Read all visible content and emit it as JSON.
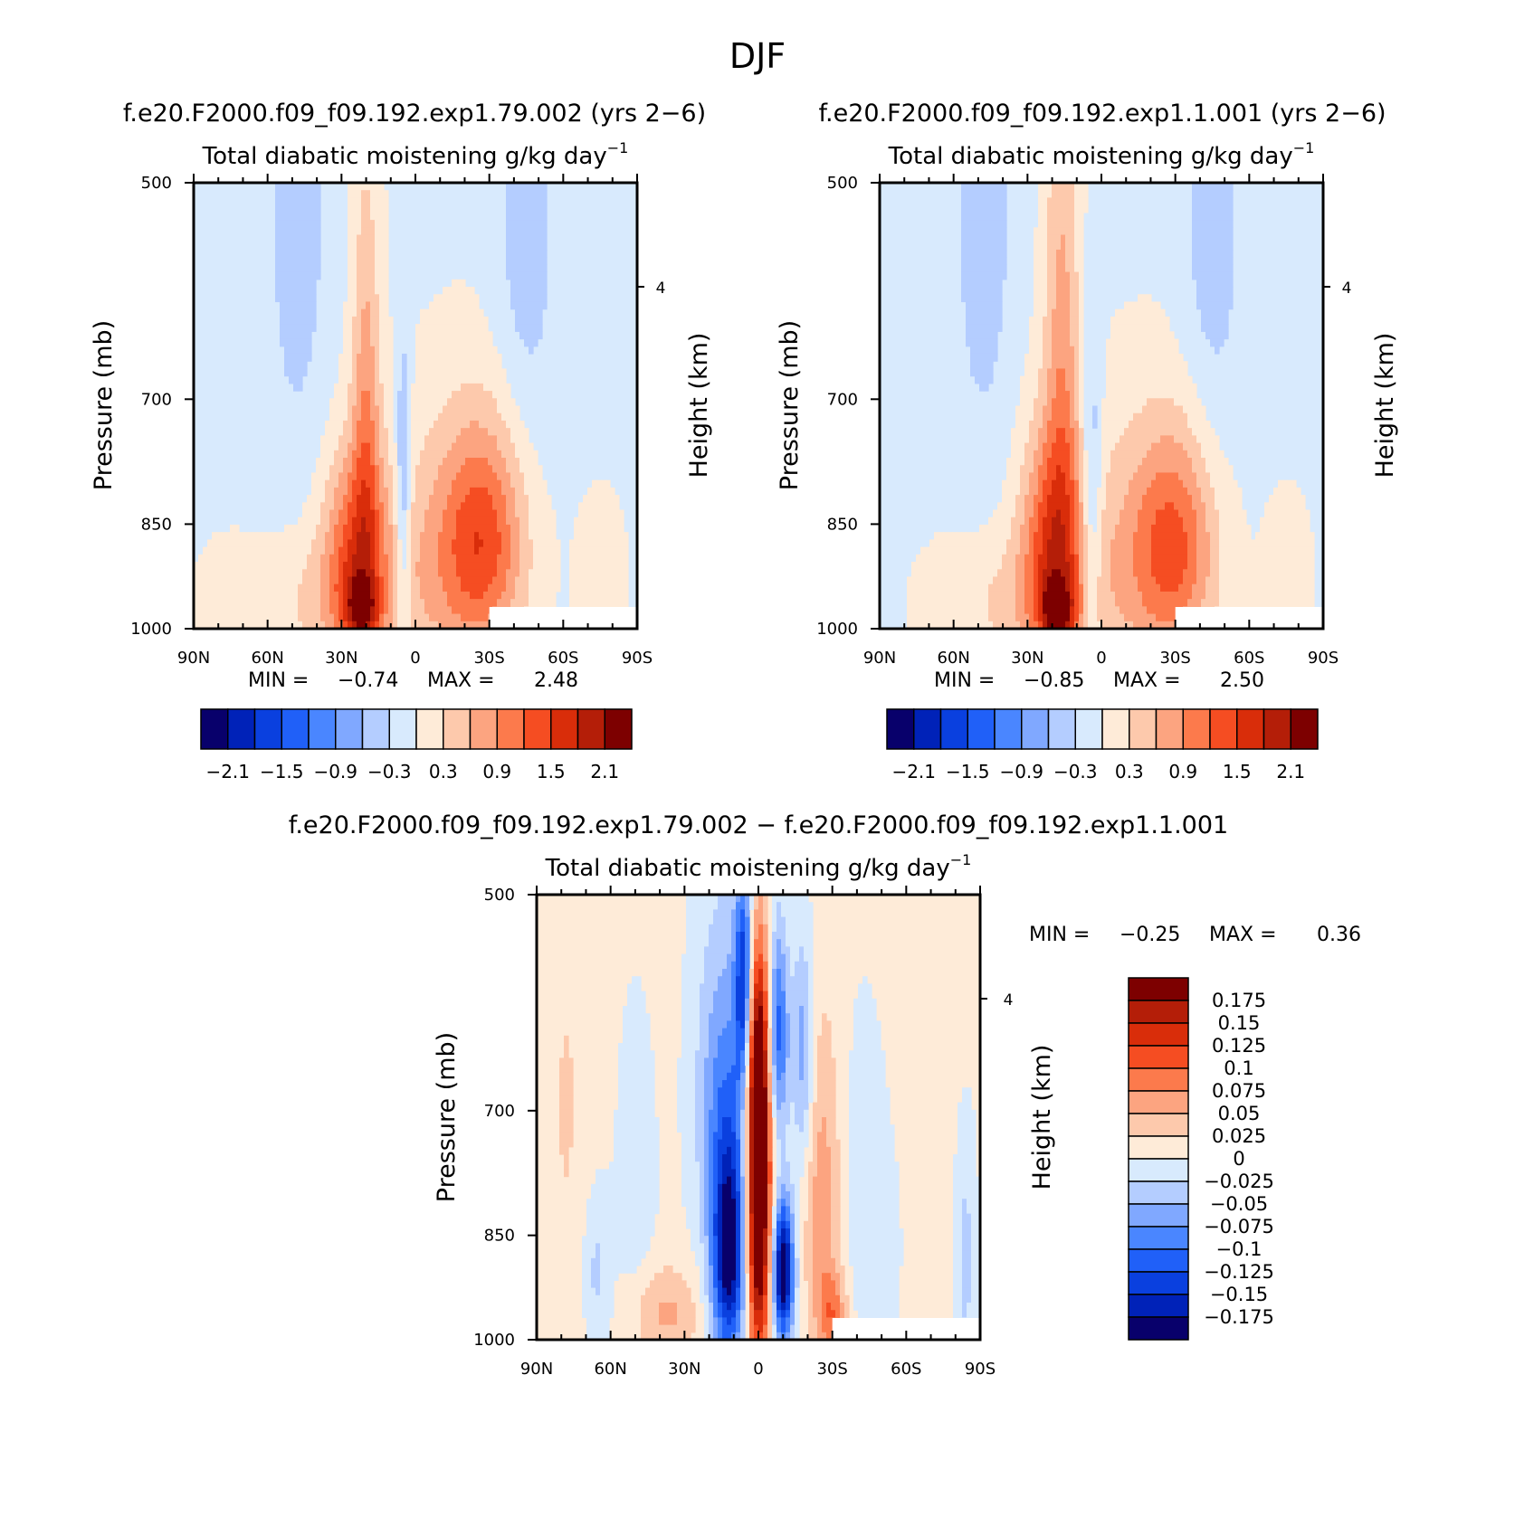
{
  "figure_title": "DJF",
  "colors": {
    "panel_scale": [
      "#08006b",
      "#0022b8",
      "#0a40df",
      "#2060f8",
      "#4a86ff",
      "#80a8ff",
      "#b4cdff",
      "#d8eafd",
      "#feebd8",
      "#fdc9ac",
      "#fca480",
      "#fc7a4c",
      "#f54d22",
      "#d92d0a",
      "#b41e08",
      "#7d0000"
    ],
    "diff_scale": [
      "#08006b",
      "#0022b8",
      "#0a40df",
      "#2060f8",
      "#4a86ff",
      "#80a8ff",
      "#b4cdff",
      "#d8eafd",
      "#feebd8",
      "#fdc9ac",
      "#fca480",
      "#fc7a4c",
      "#f54d22",
      "#d92d0a",
      "#b41e08",
      "#7d0000"
    ]
  },
  "chart_data": [
    {
      "type": "heatmap",
      "id": "left",
      "case_title": "f.e20.F2000.f09_f09.192.exp1.79.002 (yrs 2−6)",
      "var_title": "Total diabatic moistening",
      "units_label": "g/kg day",
      "units_exp": "−1",
      "ylabel": "Pressure (mb)",
      "ylabel_right": "Height (km)",
      "right_tick": "4",
      "y_ticks": [
        "500",
        "700",
        "850",
        "1000"
      ],
      "x_ticks": [
        "90N",
        "60N",
        "30N",
        "0",
        "30S",
        "60S",
        "90S"
      ],
      "ylim": [
        500,
        1000
      ],
      "xlim": [
        90,
        -90
      ],
      "min_label": "MIN =",
      "min_value": "−0.74",
      "max_label": "MAX =",
      "max_value": "2.48",
      "colorbar_labels": [
        "−2.1",
        "−1.5",
        "−0.9",
        "−0.3",
        "0.3",
        "0.9",
        "1.5",
        "2.1"
      ],
      "blobs": [
        {
          "lat": 48,
          "p": 520,
          "sx": 9,
          "sp": 170,
          "v": -0.42
        },
        {
          "lat": -45,
          "p": 520,
          "sx": 9,
          "sp": 170,
          "v": -0.42
        },
        {
          "lat": 20,
          "p": 720,
          "sx": 4,
          "sp": 170,
          "v": 0.8
        },
        {
          "lat": 24,
          "p": 890,
          "sx": 9,
          "sp": 100,
          "v": 1.3
        },
        {
          "lat": 22,
          "p": 975,
          "sx": 5,
          "sp": 35,
          "v": 1.2
        },
        {
          "lat": 35,
          "p": 960,
          "sx": 22,
          "sp": 70,
          "v": 0.4
        },
        {
          "lat": -28,
          "p": 870,
          "sx": 12,
          "sp": 110,
          "v": 1.25
        },
        {
          "lat": -10,
          "p": 900,
          "sx": 16,
          "sp": 130,
          "v": 0.55
        },
        {
          "lat": 5,
          "p": 820,
          "sx": 2.2,
          "sp": 130,
          "v": -0.75
        },
        {
          "lat": 78,
          "p": 960,
          "sx": 7,
          "sp": 50,
          "v": 0.25
        },
        {
          "lat": -75,
          "p": 930,
          "sx": 6,
          "sp": 70,
          "v": 0.35
        }
      ]
    },
    {
      "type": "heatmap",
      "id": "right",
      "case_title": "f.e20.F2000.f09_f09.192.exp1.1.001 (yrs 2−6)",
      "var_title": "Total diabatic moistening",
      "units_label": "g/kg day",
      "units_exp": "−1",
      "ylabel": "Pressure (mb)",
      "ylabel_right": "Height (km)",
      "right_tick": "4",
      "y_ticks": [
        "500",
        "700",
        "850",
        "1000"
      ],
      "x_ticks": [
        "90N",
        "60N",
        "30N",
        "0",
        "30S",
        "60S",
        "90S"
      ],
      "ylim": [
        500,
        1000
      ],
      "xlim": [
        90,
        -90
      ],
      "min_label": "MIN =",
      "min_value": "−0.85",
      "max_label": "MAX =",
      "max_value": "2.50",
      "colorbar_labels": [
        "−2.1",
        "−1.5",
        "−0.9",
        "−0.3",
        "0.3",
        "0.9",
        "1.5",
        "2.1"
      ],
      "blobs": [
        {
          "lat": 48,
          "p": 520,
          "sx": 9,
          "sp": 170,
          "v": -0.42
        },
        {
          "lat": -45,
          "p": 520,
          "sx": 9,
          "sp": 170,
          "v": -0.42
        },
        {
          "lat": 16,
          "p": 660,
          "sx": 5,
          "sp": 210,
          "v": 0.75
        },
        {
          "lat": 20,
          "p": 880,
          "sx": 9,
          "sp": 110,
          "v": 1.35
        },
        {
          "lat": 18,
          "p": 975,
          "sx": 5,
          "sp": 35,
          "v": 1.3
        },
        {
          "lat": 35,
          "p": 960,
          "sx": 22,
          "sp": 70,
          "v": 0.4
        },
        {
          "lat": -30,
          "p": 880,
          "sx": 12,
          "sp": 110,
          "v": 1.2
        },
        {
          "lat": -10,
          "p": 900,
          "sx": 16,
          "sp": 130,
          "v": 0.5
        },
        {
          "lat": 4,
          "p": 820,
          "sx": 3,
          "sp": 140,
          "v": -0.7
        },
        {
          "lat": -75,
          "p": 930,
          "sx": 6,
          "sp": 70,
          "v": 0.35
        }
      ]
    },
    {
      "type": "heatmap",
      "id": "diff",
      "case_title": "f.e20.F2000.f09_f09.192.exp1.79.002 − f.e20.F2000.f09_f09.192.exp1.1.001",
      "var_title": "Total diabatic moistening",
      "units_label": "g/kg day",
      "units_exp": "−1",
      "ylabel": "Pressure (mb)",
      "ylabel_right": "Height (km)",
      "right_tick": "4",
      "y_ticks": [
        "500",
        "700",
        "850",
        "1000"
      ],
      "x_ticks": [
        "90N",
        "60N",
        "30N",
        "0",
        "30S",
        "60S",
        "90S"
      ],
      "ylim": [
        500,
        1000
      ],
      "xlim": [
        90,
        -90
      ],
      "min_label": "MIN =",
      "min_value": "−0.25",
      "max_label": "MAX =",
      "max_value": "0.36",
      "colorbar_labels": [
        "0.175",
        "0.15",
        "0.125",
        "0.1",
        "0.075",
        "0.05",
        "0.025",
        "0",
        "−0.025",
        "−0.05",
        "−0.075",
        "−0.1",
        "−0.125",
        "−0.15",
        "−0.175"
      ],
      "blobs": [
        {
          "lat": 0,
          "p": 800,
          "sx": 3.5,
          "sp": 160,
          "v": 0.26
        },
        {
          "lat": 0,
          "p": 640,
          "sx": 3,
          "sp": 70,
          "v": 0.1
        },
        {
          "lat": -10,
          "p": 900,
          "sx": 3,
          "sp": 70,
          "v": -0.22
        },
        {
          "lat": -8,
          "p": 620,
          "sx": 3,
          "sp": 70,
          "v": -0.12
        },
        {
          "lat": 12,
          "p": 880,
          "sx": 5,
          "sp": 110,
          "v": -0.19
        },
        {
          "lat": 14,
          "p": 680,
          "sx": 8,
          "sp": 130,
          "v": -0.08
        },
        {
          "lat": 6,
          "p": 570,
          "sx": 2.5,
          "sp": 70,
          "v": -0.14
        },
        {
          "lat": -26,
          "p": 820,
          "sx": 5,
          "sp": 150,
          "v": 0.06
        },
        {
          "lat": -18,
          "p": 640,
          "sx": 3,
          "sp": 80,
          "v": -0.07
        },
        {
          "lat": -30,
          "p": 960,
          "sx": 4,
          "sp": 40,
          "v": 0.07
        },
        {
          "lat": 38,
          "p": 960,
          "sx": 10,
          "sp": 50,
          "v": 0.05
        },
        {
          "lat": 66,
          "p": 900,
          "sx": 4,
          "sp": 80,
          "v": -0.04
        },
        {
          "lat": 50,
          "p": 800,
          "sx": 6,
          "sp": 150,
          "v": -0.02
        },
        {
          "lat": -46,
          "p": 760,
          "sx": 8,
          "sp": 200,
          "v": -0.025
        },
        {
          "lat": 78,
          "p": 700,
          "sx": 8,
          "sp": 250,
          "v": 0.02
        },
        {
          "lat": -60,
          "p": 560,
          "sx": 14,
          "sp": 130,
          "v": 0.018
        },
        {
          "lat": -84,
          "p": 880,
          "sx": 3,
          "sp": 120,
          "v": -0.04
        }
      ]
    }
  ]
}
